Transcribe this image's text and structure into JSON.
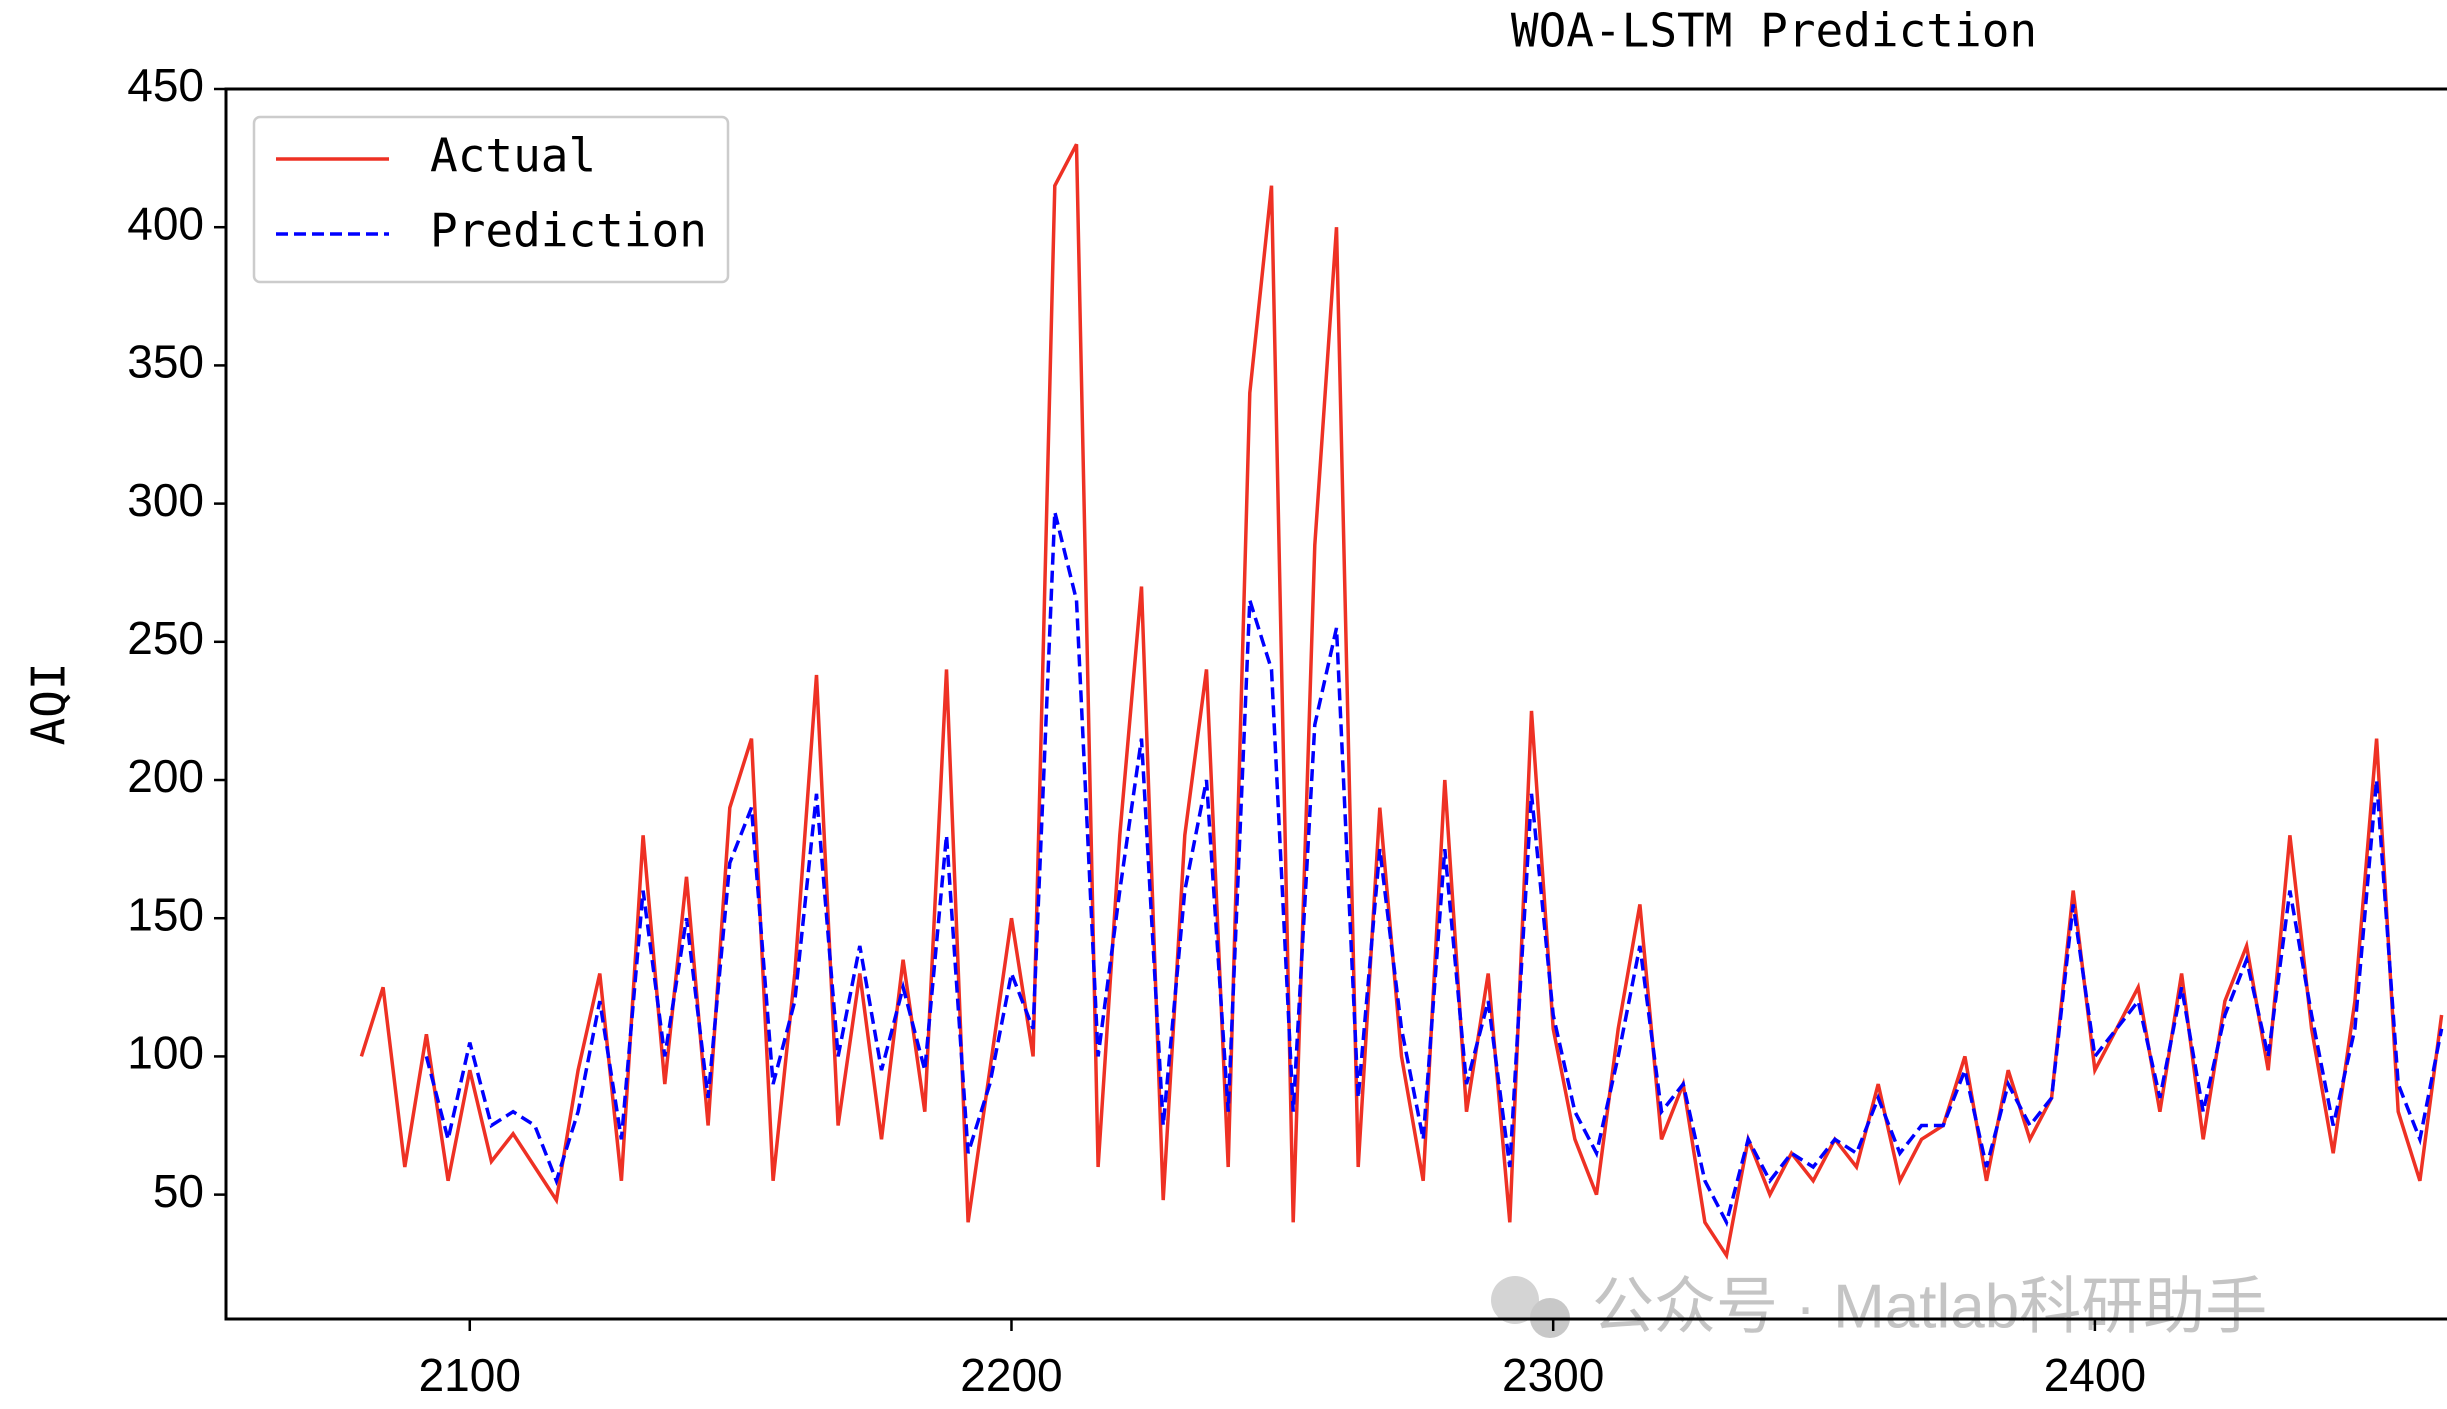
{
  "chart_data": {
    "type": "line",
    "title": "WOA-LSTM Prediction",
    "y_label": "AQI",
    "x": [
      2080,
      2084,
      2088,
      2092,
      2096,
      2100,
      2104,
      2108,
      2112,
      2116,
      2120,
      2124,
      2128,
      2132,
      2136,
      2140,
      2144,
      2148,
      2152,
      2156,
      2160,
      2164,
      2168,
      2172,
      2176,
      2180,
      2184,
      2188,
      2192,
      2196,
      2200,
      2204,
      2208,
      2212,
      2216,
      2220,
      2224,
      2228,
      2232,
      2236,
      2240,
      2244,
      2248,
      2252,
      2256,
      2260,
      2264,
      2268,
      2272,
      2276,
      2280,
      2284,
      2288,
      2292,
      2296,
      2300,
      2304,
      2308,
      2312,
      2316,
      2320,
      2324,
      2328,
      2332,
      2336,
      2340,
      2344,
      2348,
      2352,
      2356,
      2360,
      2364,
      2368,
      2372,
      2376,
      2380,
      2384,
      2388,
      2392,
      2396,
      2400,
      2404,
      2408,
      2412,
      2416,
      2420,
      2424,
      2428,
      2432,
      2436,
      2440,
      2444,
      2448,
      2452,
      2456,
      2460,
      2464
    ],
    "series": [
      {
        "name": "Actual",
        "color": "#ee3124",
        "dash": false,
        "values": [
          100,
          125,
          60,
          108,
          55,
          95,
          62,
          72,
          60,
          48,
          95,
          130,
          55,
          180,
          90,
          165,
          75,
          190,
          215,
          55,
          130,
          238,
          75,
          130,
          70,
          135,
          80,
          240,
          40,
          95,
          150,
          100,
          415,
          430,
          60,
          180,
          270,
          48,
          180,
          240,
          60,
          340,
          415,
          40,
          285,
          400,
          60,
          190,
          100,
          55,
          200,
          80,
          130,
          40,
          225,
          110,
          70,
          50,
          110,
          155,
          70,
          90,
          40,
          28,
          70,
          50,
          65,
          55,
          70,
          60,
          90,
          55,
          70,
          75,
          100,
          55,
          95,
          70,
          85,
          160,
          95,
          110,
          125,
          80,
          130,
          70,
          120,
          140,
          95,
          180,
          110,
          65,
          120,
          215,
          80,
          55,
          115
        ]
      },
      {
        "name": "Prediction",
        "color": "#0000ff",
        "dash": true,
        "values": [
          null,
          null,
          null,
          100,
          70,
          105,
          75,
          80,
          75,
          55,
          80,
          120,
          70,
          160,
          100,
          150,
          85,
          170,
          190,
          90,
          120,
          195,
          100,
          140,
          95,
          125,
          95,
          180,
          65,
          90,
          130,
          110,
          297,
          265,
          100,
          160,
          215,
          75,
          160,
          200,
          80,
          265,
          240,
          80,
          220,
          255,
          85,
          175,
          110,
          70,
          175,
          90,
          120,
          60,
          195,
          115,
          80,
          65,
          100,
          140,
          80,
          90,
          55,
          40,
          70,
          55,
          65,
          60,
          70,
          65,
          85,
          65,
          75,
          75,
          95,
          60,
          90,
          75,
          85,
          155,
          100,
          110,
          120,
          85,
          125,
          80,
          115,
          135,
          100,
          160,
          115,
          75,
          110,
          200,
          90,
          70,
          110
        ]
      }
    ],
    "xlim": [
      2055,
      2465
    ],
    "ylim": [
      5,
      450
    ],
    "xticks": [
      2100,
      2200,
      2300,
      2400
    ],
    "yticks": [
      50,
      100,
      150,
      200,
      250,
      300,
      350,
      400,
      450
    ],
    "legend": "upper left"
  },
  "watermark": "公众号 · Matlab科研助手"
}
